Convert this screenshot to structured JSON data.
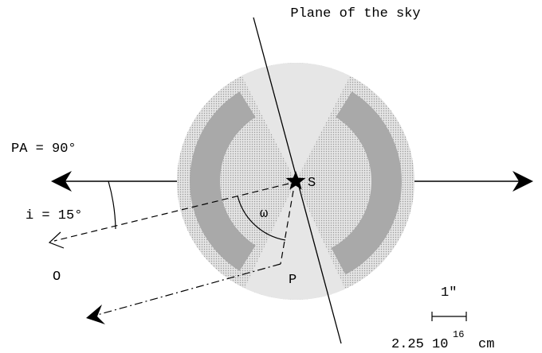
{
  "title": "Plane of the sky",
  "labels": {
    "pa": "PA = 90°",
    "inclination": "i = 15°",
    "omega": "ω",
    "star": "S",
    "observer": "O",
    "point": "P"
  },
  "scale_bar": {
    "angle": "1″",
    "length": "2.25 10",
    "exponent": "16",
    "unit": "cm"
  }
}
